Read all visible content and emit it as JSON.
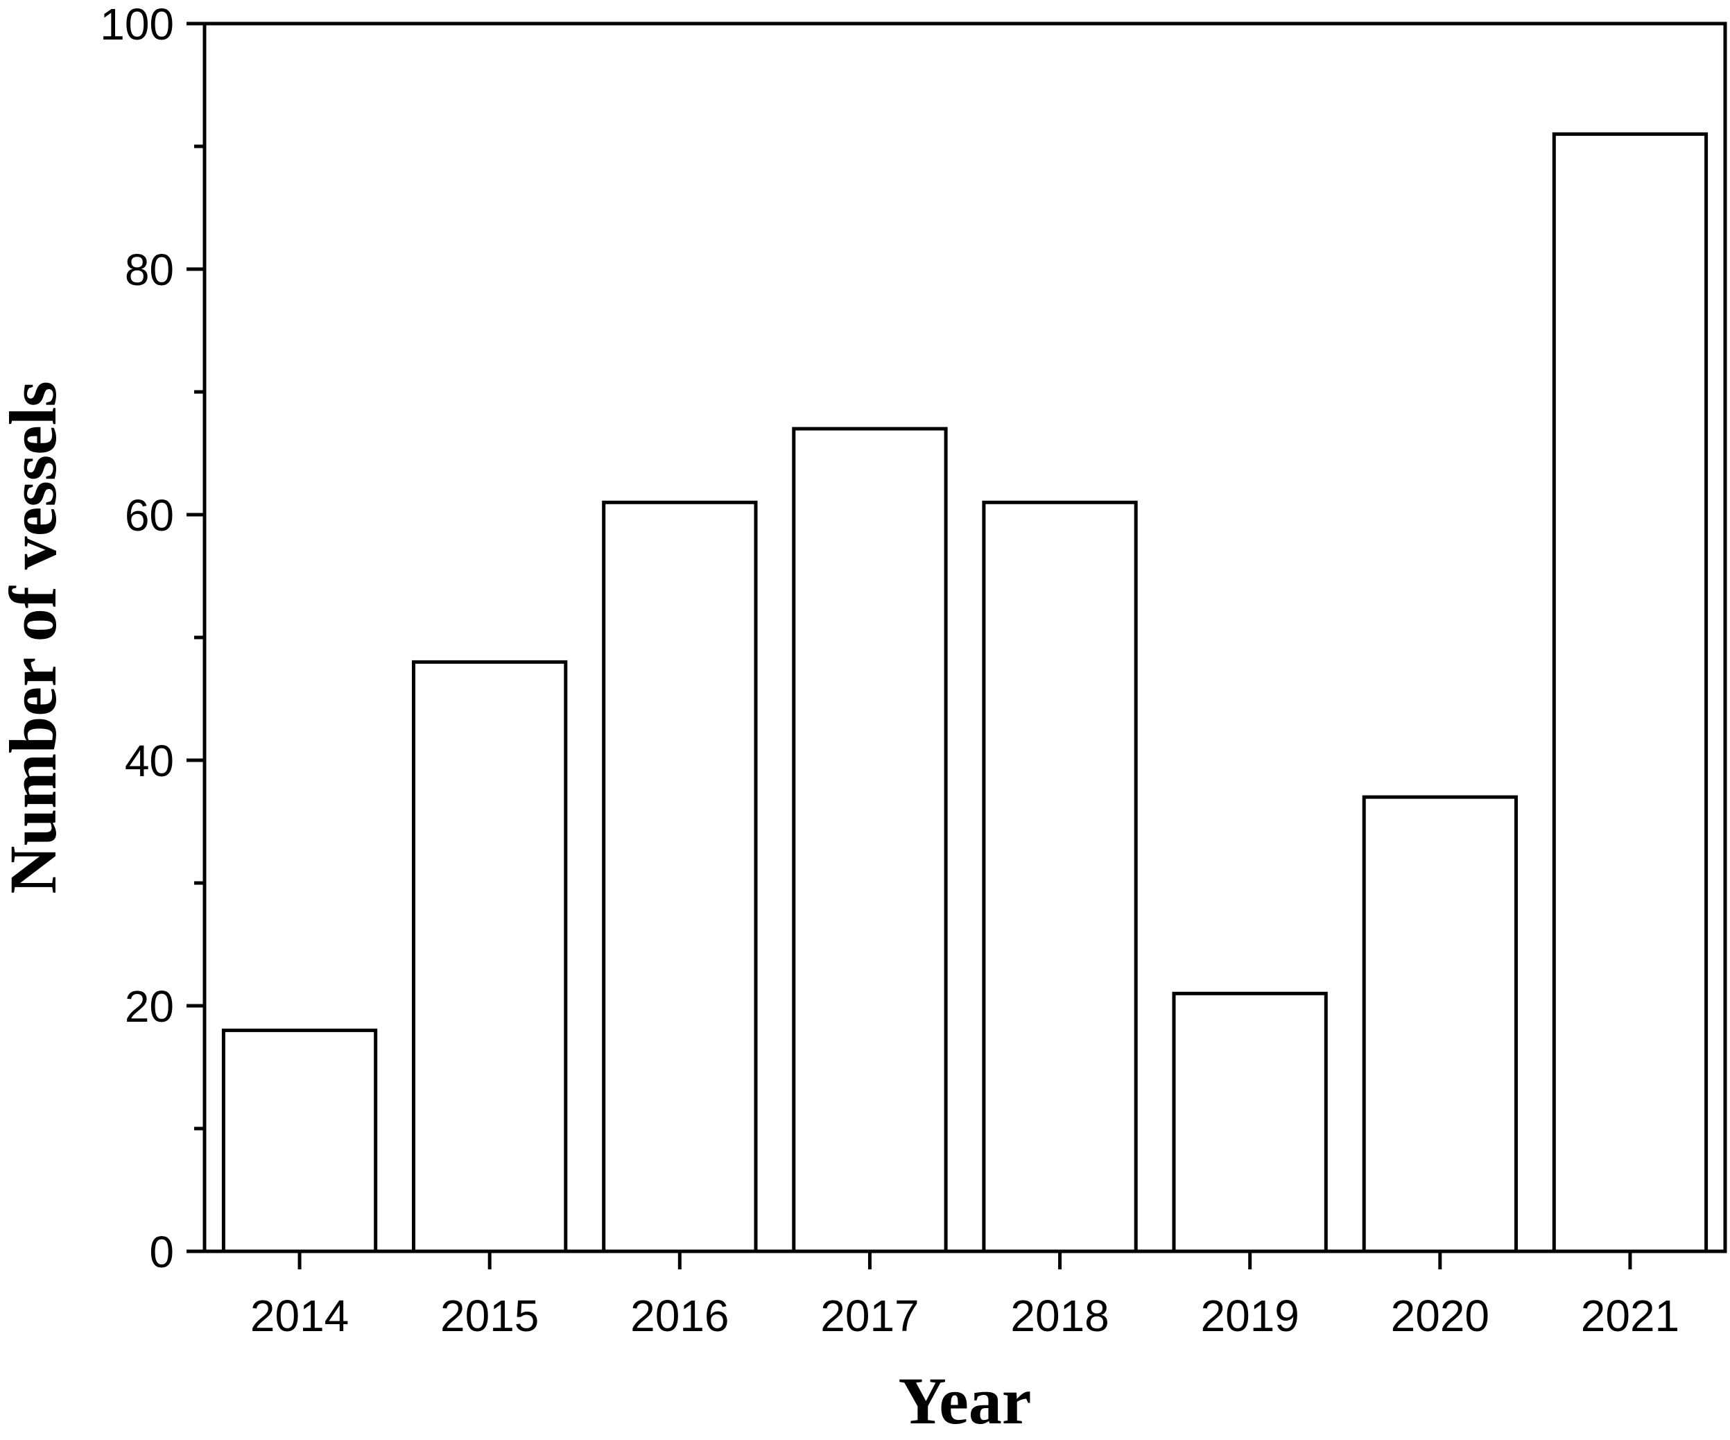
{
  "chart_data": {
    "type": "bar",
    "categories": [
      "2014",
      "2015",
      "2016",
      "2017",
      "2018",
      "2019",
      "2020",
      "2021"
    ],
    "values": [
      18,
      48,
      61,
      67,
      61,
      21,
      37,
      91
    ],
    "title": "",
    "xlabel": "Year",
    "ylabel": "Number of vessels",
    "ylim": [
      0,
      100
    ],
    "yticks_major": [
      0,
      20,
      40,
      60,
      80,
      100
    ],
    "yticks_minor": [
      10,
      30,
      50,
      70,
      90
    ],
    "grid": false,
    "legend": "none",
    "colors": {
      "bar_fill": "#ffffff",
      "bar_stroke": "#000000",
      "axis": "#000000",
      "background": "#ffffff"
    }
  }
}
